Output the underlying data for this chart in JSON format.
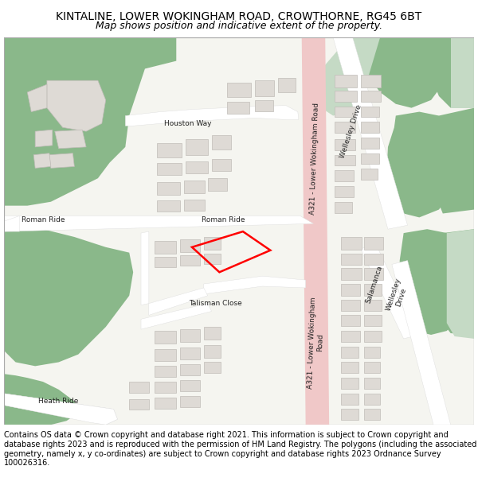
{
  "title": "KINTALINE, LOWER WOKINGHAM ROAD, CROWTHORNE, RG45 6BT",
  "subtitle": "Map shows position and indicative extent of the property.",
  "footer": "Contains OS data © Crown copyright and database right 2021. This information is subject to Crown copyright and database rights 2023 and is reproduced with the permission of HM Land Registry. The polygons (including the associated geometry, namely x, y co-ordinates) are subject to Crown copyright and database rights 2023 Ordnance Survey 100026316.",
  "bg_color": "#f5f5f0",
  "road_color": "#ffffff",
  "main_road_color": "#f0c8c8",
  "green_color": "#8ab88a",
  "light_green_color": "#c5dac5",
  "building_color": "#dedad5",
  "building_stroke": "#c0bcb8",
  "border_color": "#aaaaaa",
  "map_bg": "#f5f5f0",
  "title_fontsize": 10,
  "subtitle_fontsize": 9,
  "footer_fontsize": 7,
  "figsize": [
    6.0,
    6.25
  ],
  "dpi": 100
}
